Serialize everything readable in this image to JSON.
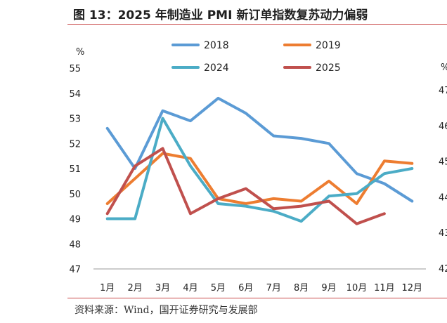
{
  "figure": {
    "title": "图 13：2025 年制造业 PMI 新订单指数复苏动力偏弱",
    "source": "资料来源：Wind，国开证券研究与发展部"
  },
  "chart_data": {
    "type": "line",
    "title": "",
    "xlabel": "",
    "ylabel": "%",
    "ylim": [
      47,
      55
    ],
    "yticks": [
      "47",
      "48",
      "49",
      "50",
      "51",
      "52",
      "53",
      "54",
      "55"
    ],
    "categories": [
      "1月",
      "2月",
      "3月",
      "4月",
      "5月",
      "6月",
      "7月",
      "8月",
      "9月",
      "10月",
      "11月",
      "12月"
    ],
    "legend_position": "top",
    "grid": false,
    "series": [
      {
        "name": "2018",
        "color": "#5b9bd5",
        "values": [
          52.6,
          51.0,
          53.3,
          52.9,
          53.8,
          53.2,
          52.3,
          52.2,
          52.0,
          50.8,
          50.4,
          49.7
        ]
      },
      {
        "name": "2019",
        "color": "#ed7d31",
        "values": [
          49.6,
          50.6,
          51.6,
          51.4,
          49.8,
          49.6,
          49.8,
          49.7,
          50.5,
          49.6,
          51.3,
          51.2
        ]
      },
      {
        "name": "2024",
        "color": "#4bacc6",
        "values": [
          49.0,
          49.0,
          53.0,
          51.1,
          49.6,
          49.5,
          49.3,
          48.9,
          49.9,
          50.0,
          50.8,
          51.0
        ]
      },
      {
        "name": "2025",
        "color": "#c0504d",
        "values": [
          49.2,
          51.1,
          51.8,
          49.2,
          49.8,
          50.2,
          49.4,
          49.5,
          49.7,
          48.8,
          49.2,
          null
        ]
      }
    ]
  },
  "right_panel_partial": {
    "ylabel": "%",
    "yticks": [
      "47",
      "46",
      "45",
      "44",
      "43",
      "42"
    ]
  }
}
